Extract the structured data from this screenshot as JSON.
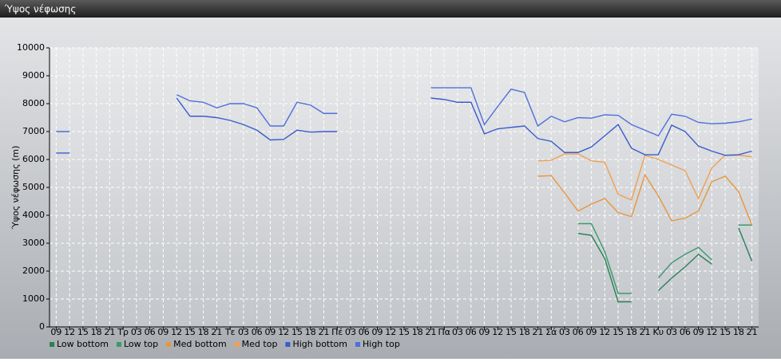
{
  "chart_data": {
    "type": "line",
    "title": "Ύψος νέφωσης",
    "y_label": "Ύψος νέφωσης (m)",
    "categories": [
      "09",
      "12",
      "15",
      "18",
      "21",
      "Τρ",
      "03",
      "06",
      "09",
      "12",
      "15",
      "18",
      "21",
      "Τε",
      "03",
      "06",
      "09",
      "12",
      "15",
      "18",
      "21",
      "Πέ",
      "03",
      "06",
      "09",
      "12",
      "15",
      "18",
      "21",
      "Πα",
      "03",
      "06",
      "09",
      "12",
      "15",
      "18",
      "21",
      "Σά",
      "03",
      "06",
      "09",
      "12",
      "15",
      "18",
      "21",
      "Κυ",
      "03",
      "06",
      "09",
      "12",
      "15",
      "18",
      "21"
    ],
    "ylim": [
      0,
      10000
    ],
    "yticks": [
      0,
      1000,
      2000,
      3000,
      4000,
      5000,
      6000,
      7000,
      8000,
      9000,
      10000
    ],
    "grid": true,
    "legend": "bottom",
    "series": [
      {
        "name": "Low bottom",
        "color": "#2a7f55",
        "values": [
          null,
          null,
          null,
          null,
          null,
          null,
          null,
          null,
          null,
          null,
          null,
          null,
          null,
          null,
          null,
          null,
          null,
          null,
          null,
          null,
          null,
          null,
          null,
          null,
          null,
          null,
          null,
          null,
          null,
          null,
          null,
          null,
          null,
          null,
          null,
          null,
          null,
          null,
          null,
          3350,
          3280,
          2450,
          900,
          900,
          null,
          1300,
          1750,
          2150,
          2600,
          2250,
          null,
          3550,
          2350
        ]
      },
      {
        "name": "Low top",
        "color": "#3a9a6a",
        "values": [
          null,
          null,
          null,
          null,
          null,
          null,
          null,
          null,
          null,
          null,
          null,
          null,
          null,
          null,
          null,
          null,
          null,
          null,
          null,
          null,
          null,
          null,
          null,
          null,
          null,
          null,
          null,
          null,
          null,
          null,
          null,
          null,
          null,
          null,
          null,
          null,
          null,
          null,
          null,
          3700,
          3700,
          2700,
          1200,
          1200,
          null,
          1750,
          2300,
          2600,
          2850,
          2400,
          null,
          3650,
          3650
        ]
      },
      {
        "name": "Med bottom",
        "color": "#e8963e",
        "values": [
          null,
          null,
          null,
          null,
          null,
          null,
          null,
          null,
          null,
          null,
          null,
          null,
          null,
          null,
          null,
          null,
          null,
          null,
          null,
          null,
          null,
          null,
          null,
          null,
          null,
          null,
          null,
          null,
          null,
          null,
          null,
          null,
          null,
          null,
          null,
          null,
          5400,
          5420,
          4800,
          4150,
          4400,
          4600,
          4100,
          3950,
          5450,
          4700,
          3800,
          3900,
          4150,
          5200,
          5400,
          4850,
          3650
        ]
      },
      {
        "name": "Med top",
        "color": "#f0a050",
        "values": [
          null,
          null,
          null,
          null,
          null,
          null,
          null,
          null,
          null,
          null,
          null,
          null,
          null,
          null,
          null,
          null,
          null,
          null,
          null,
          null,
          null,
          null,
          null,
          null,
          null,
          null,
          null,
          null,
          null,
          null,
          null,
          null,
          null,
          null,
          null,
          null,
          5950,
          5970,
          6200,
          6200,
          5950,
          5900,
          4750,
          4550,
          6150,
          6000,
          5800,
          5600,
          4600,
          5700,
          6150,
          6150,
          6100
        ]
      },
      {
        "name": "High bottom",
        "color": "#3a5ccc",
        "values": [
          6230,
          6230,
          null,
          null,
          null,
          null,
          null,
          null,
          null,
          8200,
          7550,
          7550,
          7500,
          7400,
          7250,
          7050,
          6700,
          6720,
          7050,
          6980,
          7000,
          7000,
          null,
          null,
          null,
          null,
          null,
          null,
          8200,
          8150,
          8050,
          8050,
          6920,
          7100,
          7150,
          7200,
          6750,
          6650,
          6250,
          6250,
          6450,
          6850,
          7250,
          6400,
          6170,
          6170,
          7230,
          7000,
          6480,
          6300,
          6150,
          6170,
          6300
        ]
      },
      {
        "name": "High top",
        "color": "#4f6fdc",
        "values": [
          7000,
          7000,
          null,
          null,
          null,
          null,
          null,
          null,
          null,
          8320,
          8100,
          8050,
          7850,
          8000,
          8000,
          7850,
          7200,
          7200,
          8050,
          7950,
          7650,
          7650,
          null,
          null,
          null,
          null,
          null,
          null,
          8570,
          8570,
          8570,
          8570,
          7250,
          7900,
          8520,
          8400,
          7200,
          7550,
          7350,
          7500,
          7480,
          7600,
          7580,
          7250,
          7050,
          6850,
          7620,
          7550,
          7330,
          7280,
          7300,
          7350,
          7450
        ]
      }
    ]
  }
}
